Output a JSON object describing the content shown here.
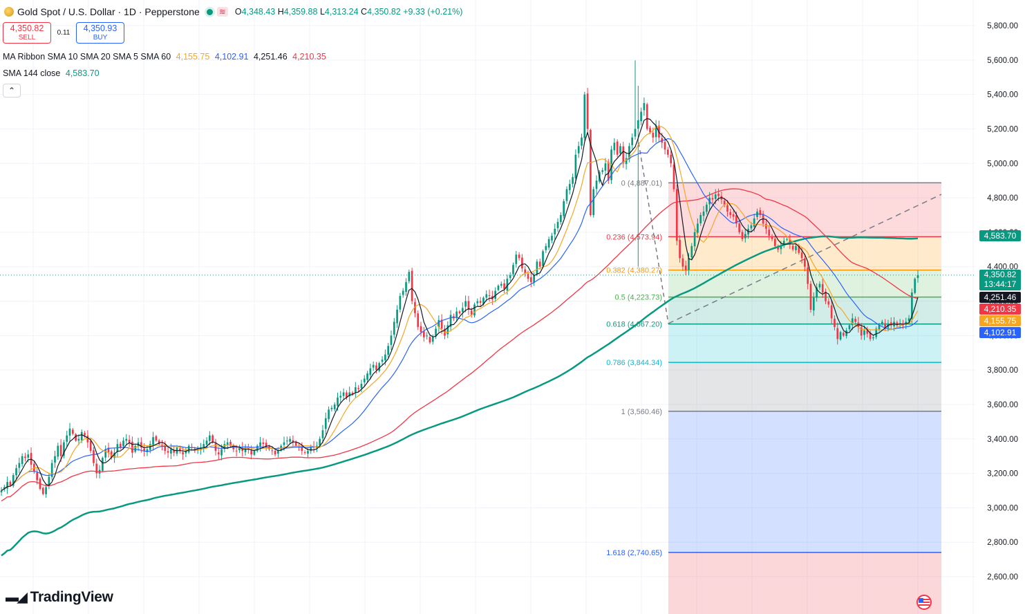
{
  "header": {
    "symbol": "Gold Spot / U.S. Dollar · 1D · Pepperstone",
    "open_label": "O",
    "open": "4,348.43",
    "high_label": "H",
    "high": "4,359.88",
    "low_label": "L",
    "low": "4,313.24",
    "close_label": "C",
    "close": "4,350.82",
    "change": "+9.33 (+0.21%)"
  },
  "trade": {
    "sell_price": "4,350.82",
    "sell_label": "SELL",
    "spread": "0.11",
    "buy_price": "4,350.93",
    "buy_label": "BUY"
  },
  "indicators": {
    "ribbon_label": "MA Ribbon SMA 10 SMA 20 SMA 5 SMA 60",
    "ribbon_values": [
      "4,155.75",
      "4,102.91",
      "4,251.46",
      "4,210.35"
    ],
    "sma_label": "SMA 144 close",
    "sma_value": "4,583.70"
  },
  "price_tags": {
    "sma144": "4,583.70",
    "last": "4,350.82",
    "countdown": "13:44:17",
    "sma5": "4,251.46",
    "sma60": "4,210.35",
    "sma10": "4,155.75",
    "sma20": "4,102.91"
  },
  "colors": {
    "up": "#089981",
    "down": "#f23645",
    "sma10": "#f5a623",
    "sma20": "#2962ff",
    "sma5": "#131722",
    "sma60": "#f23645",
    "sma144": "#089981"
  },
  "logo": "TradingView",
  "flag_icon": "us-flag-icon",
  "chart_data": {
    "type": "candlestick",
    "symbol": "Gold Spot / U.S. Dollar",
    "interval": "1D",
    "y_axis": {
      "side": "right",
      "ticks": [
        "5,800.00",
        "5,600.00",
        "5,400.00",
        "5,200.00",
        "5,000.00",
        "4,800.00",
        "4,600.00",
        "4,400.00",
        "4,200.00",
        "4,000.00",
        "3,800.00",
        "3,600.00",
        "3,400.00",
        "3,200.00",
        "3,000.00",
        "2,800.00",
        "2,600.00"
      ],
      "tick_values": [
        5800,
        5600,
        5400,
        5200,
        5000,
        4800,
        4600,
        4400,
        4200,
        4000,
        3800,
        3600,
        3400,
        3200,
        3000,
        2800,
        2600
      ],
      "range": [
        2380,
        5990
      ]
    },
    "grid": true,
    "last_price": 4350.82,
    "close_series": [
      3100,
      3120,
      3150,
      3130,
      3190,
      3230,
      3260,
      3300,
      3290,
      3310,
      3250,
      3210,
      3160,
      3110,
      3080,
      3120,
      3180,
      3260,
      3300,
      3360,
      3300,
      3380,
      3420,
      3460,
      3430,
      3390,
      3400,
      3440,
      3420,
      3380,
      3330,
      3260,
      3200,
      3220,
      3290,
      3340,
      3320,
      3290,
      3320,
      3370,
      3350,
      3390,
      3400,
      3380,
      3320,
      3360,
      3380,
      3350,
      3330,
      3340,
      3370,
      3410,
      3390,
      3370,
      3360,
      3330,
      3320,
      3340,
      3320,
      3350,
      3330,
      3310,
      3330,
      3360,
      3350,
      3330,
      3340,
      3350,
      3370,
      3390,
      3420,
      3380,
      3330,
      3310,
      3340,
      3370,
      3380,
      3360,
      3340,
      3330,
      3350,
      3330,
      3350,
      3340,
      3310,
      3330,
      3360,
      3380,
      3370,
      3350,
      3340,
      3330,
      3310,
      3330,
      3360,
      3380,
      3390,
      3400,
      3380,
      3360,
      3350,
      3330,
      3320,
      3330,
      3350,
      3350,
      3360,
      3400,
      3450,
      3520,
      3570,
      3580,
      3600,
      3640,
      3650,
      3670,
      3640,
      3670,
      3660,
      3700,
      3690,
      3720,
      3750,
      3780,
      3810,
      3830,
      3800,
      3840,
      3860,
      3890,
      3940,
      4000,
      4080,
      4150,
      4230,
      4260,
      4310,
      4370,
      4200,
      4130,
      4050,
      4020,
      3990,
      4000,
      3960,
      3990,
      4040,
      4090,
      4040,
      4000,
      4060,
      4120,
      4100,
      4140,
      4130,
      4160,
      4200,
      4150,
      4120,
      4180,
      4200,
      4190,
      4220,
      4240,
      4230,
      4210,
      4260,
      4290,
      4300,
      4270,
      4330,
      4350,
      4410,
      4470,
      4450,
      4390,
      4360,
      4330,
      4310,
      4350,
      4430,
      4400,
      4490,
      4520,
      4560,
      4580,
      4620,
      4660,
      4700,
      4780,
      4850,
      4880,
      4920,
      5050,
      5100,
      5150,
      5400,
      5200,
      4700,
      4850,
      4900,
      4950,
      4960,
      5000,
      4900,
      5080,
      5120,
      5050,
      5100,
      5000,
      5030,
      5100,
      5150,
      5200,
      5250,
      5300,
      5350,
      5200,
      5180,
      5150,
      5220,
      5150,
      5120,
      5080,
      5050,
      5000,
      4850,
      4550,
      4450,
      4400,
      4380,
      4450,
      4520,
      4600,
      4650,
      4700,
      4720,
      4760,
      4800,
      4790,
      4820,
      4810,
      4790,
      4760,
      4720,
      4700,
      4690,
      4650,
      4600,
      4560,
      4590,
      4620,
      4640,
      4680,
      4720,
      4700,
      4650,
      4620,
      4580,
      4560,
      4520,
      4500,
      4520,
      4550,
      4560,
      4530,
      4500,
      4520,
      4480,
      4450,
      4400,
      4300,
      4150,
      4220,
      4280,
      4300,
      4250,
      4200,
      4180,
      4100,
      4050,
      3980,
      4020,
      4000,
      4030,
      4060,
      4100,
      4080,
      4050,
      4000,
      4030,
      4010,
      3980,
      3990,
      4040,
      4060,
      4080,
      4050,
      4070,
      4060,
      4080,
      4060,
      4070,
      4060,
      4080,
      4100,
      4250,
      4330,
      4350.82
    ],
    "moving_averages": [
      {
        "name": "SMA 10",
        "last": 4155.75
      },
      {
        "name": "SMA 20",
        "last": 4102.91
      },
      {
        "name": "SMA 5",
        "last": 4251.46
      },
      {
        "name": "SMA 60",
        "last": 4210.35
      },
      {
        "name": "SMA 144 close",
        "last": 4583.7
      }
    ],
    "fibonacci": {
      "levels": [
        {
          "ratio": 0,
          "label": "0 (4,887.01)",
          "price": 4887.01,
          "line": "#787b86",
          "fill": "rgba(242,54,69,0.18)"
        },
        {
          "ratio": 0.236,
          "label": "0.236 (4,573.94)",
          "price": 4573.94,
          "line": "#f23645",
          "fill": "rgba(255,152,0,0.2)"
        },
        {
          "ratio": 0.382,
          "label": "0.382 (4,380.27)",
          "price": 4380.27,
          "line": "#ff9800",
          "fill": "rgba(76,175,80,0.18)"
        },
        {
          "ratio": 0.5,
          "label": "0.5 (4,223.73)",
          "price": 4223.73,
          "line": "#4caf50",
          "fill": "rgba(8,153,129,0.18)"
        },
        {
          "ratio": 0.618,
          "label": "0.618 (4,067.20)",
          "price": 4067.2,
          "line": "#089981",
          "fill": "rgba(0,188,212,0.2)"
        },
        {
          "ratio": 0.786,
          "label": "0.786 (3,844.34)",
          "price": 3844.34,
          "line": "#00bcd4",
          "fill": "rgba(120,123,134,0.2)"
        },
        {
          "ratio": 1,
          "label": "1 (3,560.46)",
          "price": 3560.46,
          "line": "#787b86",
          "fill": "rgba(41,98,255,0.2)"
        },
        {
          "ratio": 1.618,
          "label": "1.618 (2,740.65)",
          "price": 2740.65,
          "line": "#2962ff",
          "fill": "rgba(242,54,69,0.2)"
        }
      ],
      "anchor_from_price": 5120,
      "anchor_to_price": 4070,
      "trend_line_end_price": 4820
    }
  }
}
